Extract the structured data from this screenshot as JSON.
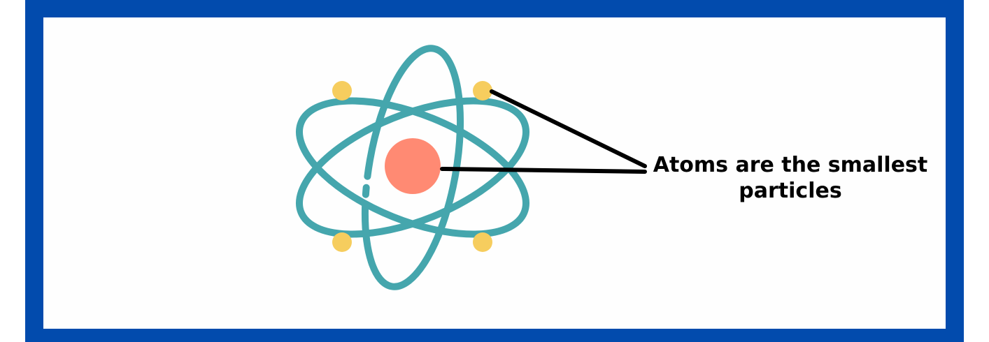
{
  "label": {
    "line1": "Atoms are the smallest",
    "line2": "particles"
  },
  "colors": {
    "frame": "#024bad",
    "background": "#fefefe",
    "orbit": "#45a6ad",
    "nucleus": "#ff8a73",
    "electron": "#f6cd5e",
    "leader_line": "#000000"
  },
  "icons": {
    "atom": "atom-icon"
  }
}
